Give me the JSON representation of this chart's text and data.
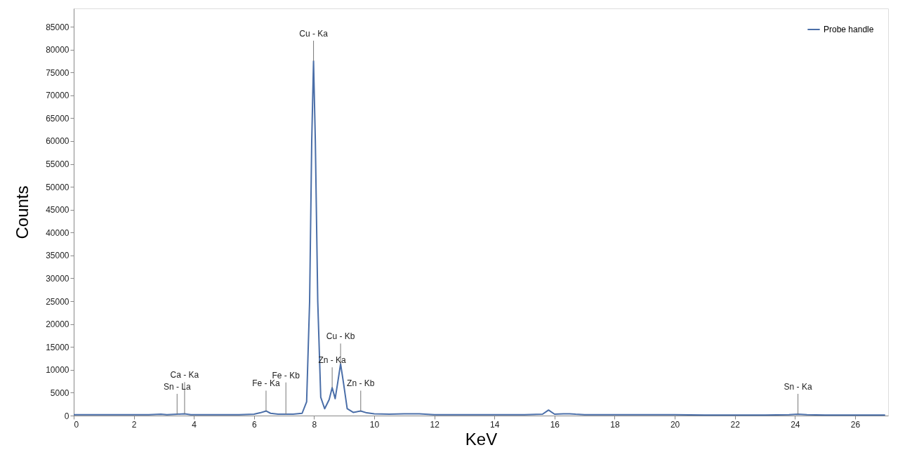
{
  "chart_data": {
    "type": "line",
    "xlabel": "KeV",
    "ylabel": "Counts",
    "xlim": [
      0,
      27.1
    ],
    "ylim": [
      0,
      89000
    ],
    "xticks": [
      0,
      2,
      4,
      6,
      8,
      10,
      12,
      14,
      16,
      18,
      20,
      22,
      24,
      26
    ],
    "yticks": [
      0,
      5000,
      10000,
      15000,
      20000,
      25000,
      30000,
      35000,
      40000,
      45000,
      50000,
      55000,
      60000,
      65000,
      70000,
      75000,
      80000,
      85000
    ],
    "grid": false,
    "legend": "top right",
    "marker": "none",
    "line_style": "solid",
    "series": [
      {
        "name": "Probe handle",
        "color": "#4a6ea8",
        "x": [
          0,
          0.5,
          1,
          1.5,
          2,
          2.5,
          2.9,
          3.1,
          3.44,
          3.69,
          3.9,
          4.5,
          5,
          5.5,
          6.0,
          6.2,
          6.4,
          6.55,
          6.8,
          7.06,
          7.3,
          7.6,
          7.75,
          7.85,
          7.92,
          7.98,
          8.04,
          8.12,
          8.22,
          8.35,
          8.5,
          8.6,
          8.7,
          8.78,
          8.88,
          8.98,
          9.1,
          9.3,
          9.55,
          9.75,
          10,
          10.5,
          11,
          11.5,
          12,
          13,
          14,
          15,
          15.6,
          15.8,
          16.0,
          16.3,
          16.5,
          16.7,
          17,
          18,
          19,
          20,
          21,
          22,
          23,
          23.8,
          24.1,
          24.4,
          25,
          26,
          27
        ],
        "values": [
          200,
          200,
          200,
          200,
          200,
          200,
          300,
          200,
          300,
          400,
          200,
          200,
          200,
          200,
          300,
          600,
          1000,
          500,
          300,
          300,
          300,
          500,
          3000,
          25000,
          60000,
          77500,
          60000,
          25000,
          4000,
          1500,
          3500,
          6100,
          3700,
          7000,
          11300,
          7000,
          1500,
          700,
          1000,
          600,
          400,
          300,
          400,
          400,
          200,
          200,
          200,
          200,
          300,
          1200,
          300,
          400,
          400,
          300,
          200,
          200,
          200,
          200,
          100,
          100,
          100,
          200,
          300,
          200,
          100,
          100,
          100
        ]
      }
    ],
    "annotations": [
      {
        "text": "Sn - La",
        "x": 3.44,
        "y": 300
      },
      {
        "text": "Ca - Ka",
        "x": 3.69,
        "y": 380
      },
      {
        "text": "Fe - Ka",
        "x": 6.4,
        "y": 1000
      },
      {
        "text": "Fe - Kb",
        "x": 7.06,
        "y": 300
      },
      {
        "text": "Cu - Ka",
        "x": 7.98,
        "y": 77500
      },
      {
        "text": "Zn - Ka",
        "x": 8.6,
        "y": 6100
      },
      {
        "text": "Cu - Kb",
        "x": 8.88,
        "y": 11300
      },
      {
        "text": "Zn - Kb",
        "x": 9.55,
        "y": 1000
      },
      {
        "text": "Sn - Ka",
        "x": 24.1,
        "y": 300
      }
    ]
  }
}
